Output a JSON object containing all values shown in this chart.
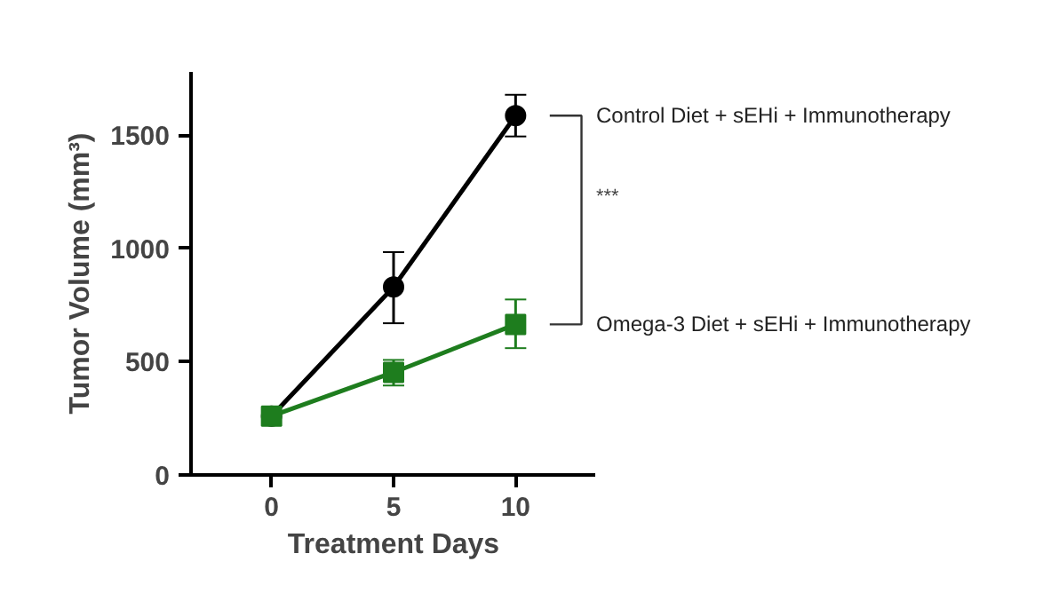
{
  "chart_data": {
    "type": "line",
    "xlabel": "Treatment Days",
    "ylabel": "Tumor Volume (mm³)",
    "x": [
      0,
      5,
      10
    ],
    "xlim": [
      -3.3,
      13.3
    ],
    "xticks": [
      0,
      5,
      10
    ],
    "ylim": [
      0,
      1780
    ],
    "yticks": [
      0,
      500,
      1000,
      1500
    ],
    "grid": false,
    "legend": false,
    "annotations": [
      "***"
    ],
    "series": [
      {
        "name": "Control Diet + sEHi + Immunotherapy",
        "color": "#000000",
        "marker": "circle",
        "values": [
          260,
          830,
          1587
        ],
        "errors": [
          null,
          [
            670,
            984
          ],
          [
            1495,
            1679
          ]
        ]
      },
      {
        "name": "Omega-3 Diet + sEHi + Immunotherapy",
        "color": "#1e7d1e",
        "marker": "square",
        "values": [
          260,
          453,
          665
        ],
        "errors": [
          null,
          [
            395,
            508
          ],
          [
            560,
            775
          ]
        ]
      }
    ]
  }
}
